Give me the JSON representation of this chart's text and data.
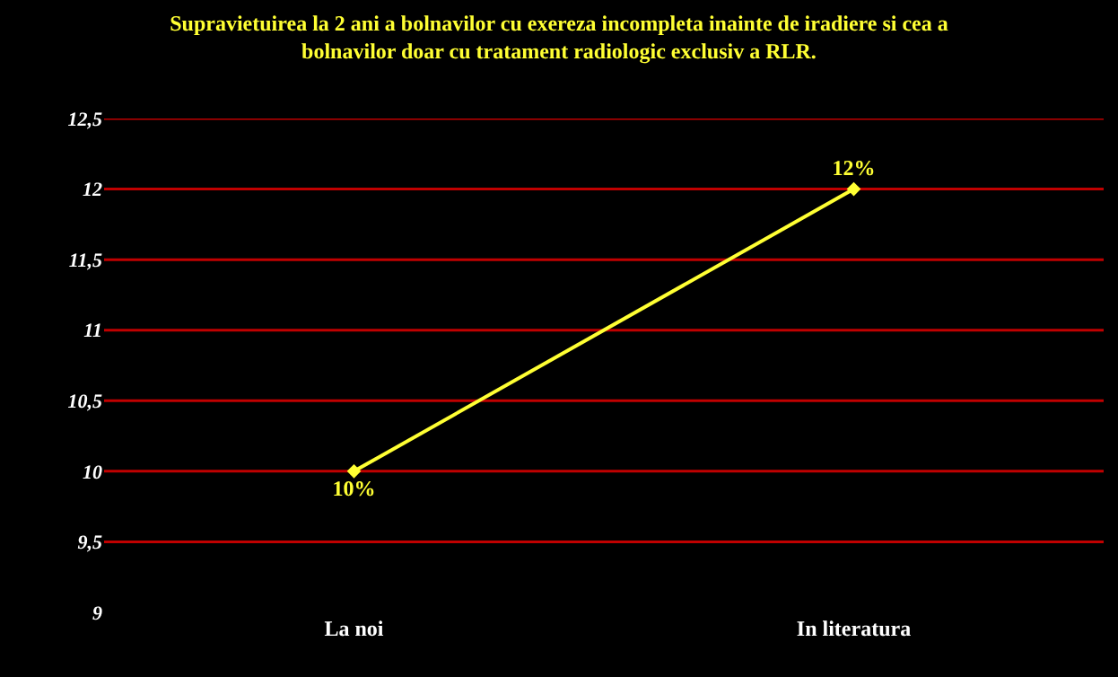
{
  "chart_data": {
    "type": "line",
    "title": "Supravietuirea la 2 ani a bolnavilor cu exereza incompleta inainte de iradiere si cea a bolnavilor doar cu tratament radiologic exclusiv a RLR.",
    "categories": [
      "La noi",
      "In literatura"
    ],
    "series": [
      {
        "color": "#ffff33",
        "values": [
          10,
          12
        ],
        "value_labels": [
          "10%",
          "12%"
        ]
      }
    ],
    "ylim": [
      9,
      12.5
    ],
    "yticks": [
      9,
      {
        "value": 9.5,
        "label": "9,5"
      },
      10,
      {
        "value": 10.5,
        "label": "10,5"
      },
      11,
      {
        "value": 11.5,
        "label": "11,5"
      },
      12,
      {
        "value": 12.5,
        "label": "12,5"
      }
    ],
    "grid": "y",
    "marker": "diamond",
    "line_style": "solid"
  }
}
